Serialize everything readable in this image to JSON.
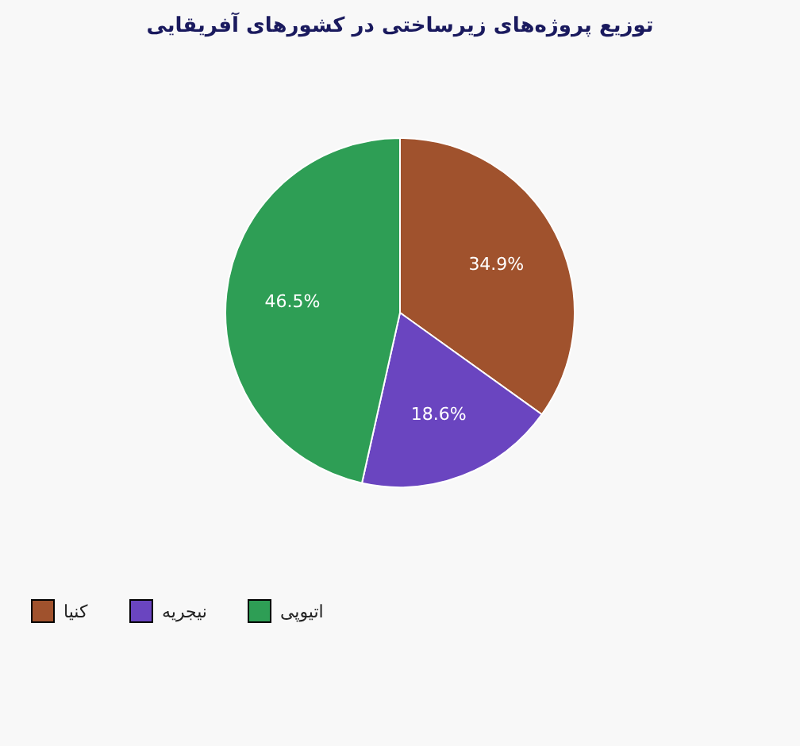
{
  "chart_data": {
    "type": "pie",
    "title": "توزیع پروژه‌های زیرساختی در کشورهای آفریقایی",
    "categories": [
      "کنیا",
      "نیجریه",
      "اتیوپی"
    ],
    "values": [
      34.9,
      18.6,
      46.5
    ],
    "value_labels": [
      "34.9%",
      "18.6%",
      "46.5%"
    ],
    "colors": [
      "#a0522d",
      "#6a45c0",
      "#2e9e55"
    ],
    "legend": "bottom left"
  }
}
